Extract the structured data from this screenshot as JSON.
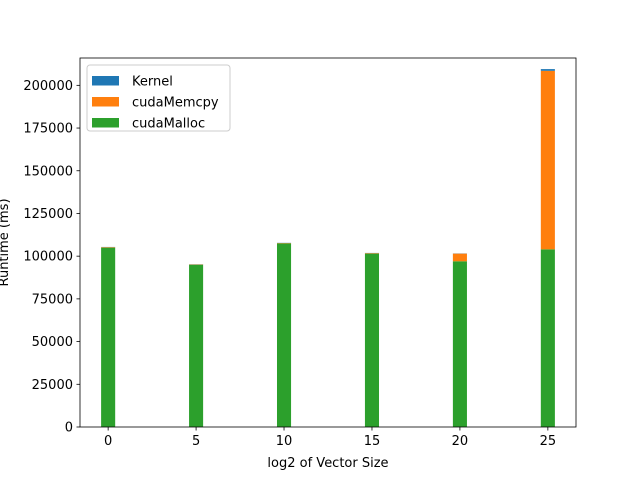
{
  "chart_data": {
    "type": "bar",
    "stacked": true,
    "title": "",
    "xlabel": "log2 of Vector Size",
    "ylabel": "Runtime (ms)",
    "x": [
      0,
      5,
      10,
      15,
      20,
      25
    ],
    "xlim": [
      -1.6,
      26.6
    ],
    "ylim": [
      0,
      216000
    ],
    "xticks": [
      0,
      5,
      10,
      15,
      20,
      25
    ],
    "yticks": [
      0,
      25000,
      50000,
      75000,
      100000,
      125000,
      150000,
      175000,
      200000
    ],
    "bar_width": 0.8,
    "grid": false,
    "legend_position": "top-left",
    "series": [
      {
        "name": "cudaMalloc",
        "color": "#2ca02c",
        "values": [
          105000,
          95000,
          107500,
          101500,
          97000,
          104000
        ]
      },
      {
        "name": "cudaMemcpy",
        "color": "#ff7f0e",
        "values": [
          300,
          200,
          200,
          300,
          4500,
          104500
        ]
      },
      {
        "name": "Kernel",
        "color": "#1f77b4",
        "values": [
          100,
          100,
          100,
          100,
          100,
          1000
        ]
      }
    ],
    "legend_order": [
      "Kernel",
      "cudaMemcpy",
      "cudaMalloc"
    ]
  }
}
